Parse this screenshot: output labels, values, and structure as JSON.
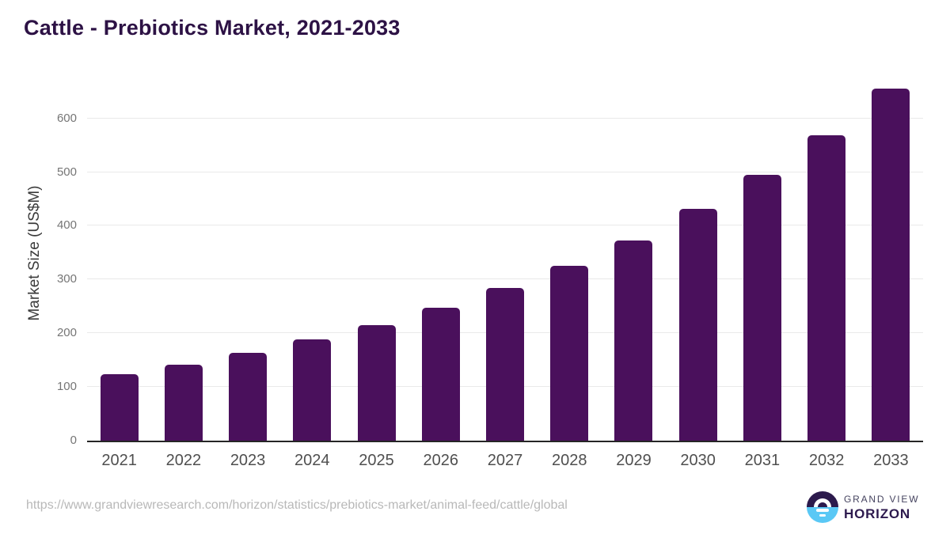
{
  "title": "Cattle - Prebiotics Market, 2021-2033",
  "source_url": "https://www.grandviewresearch.com/horizon/statistics/prebiotics-market/animal-feed/cattle/global",
  "logo": {
    "line1": "GRAND VIEW",
    "line2": "HORIZON"
  },
  "colors": {
    "bar": "#4a105c",
    "title": "#2d1245",
    "axis_line": "#262626",
    "gridline": "#e9e9e9",
    "ytick_label": "#757575",
    "xtick_label": "#4f4f4f",
    "source_text": "#b8b8b8",
    "logo_purple": "#2c1a4c",
    "logo_blue": "#5ac8f5"
  },
  "chart_data": {
    "type": "bar",
    "title": "Cattle - Prebiotics Market, 2021-2033",
    "categories": [
      "2021",
      "2022",
      "2023",
      "2024",
      "2025",
      "2026",
      "2027",
      "2028",
      "2029",
      "2030",
      "2031",
      "2032",
      "2033"
    ],
    "values": [
      123,
      142,
      164,
      188,
      215,
      248,
      284,
      325,
      373,
      431,
      495,
      569,
      656
    ],
    "xlabel": "",
    "ylabel": "Market Size (US$M)",
    "ylim": [
      0,
      680
    ],
    "yticks": [
      0,
      100,
      200,
      300,
      400,
      500,
      600
    ],
    "grid": true,
    "legend": false,
    "bar_color": "#4a105c"
  }
}
